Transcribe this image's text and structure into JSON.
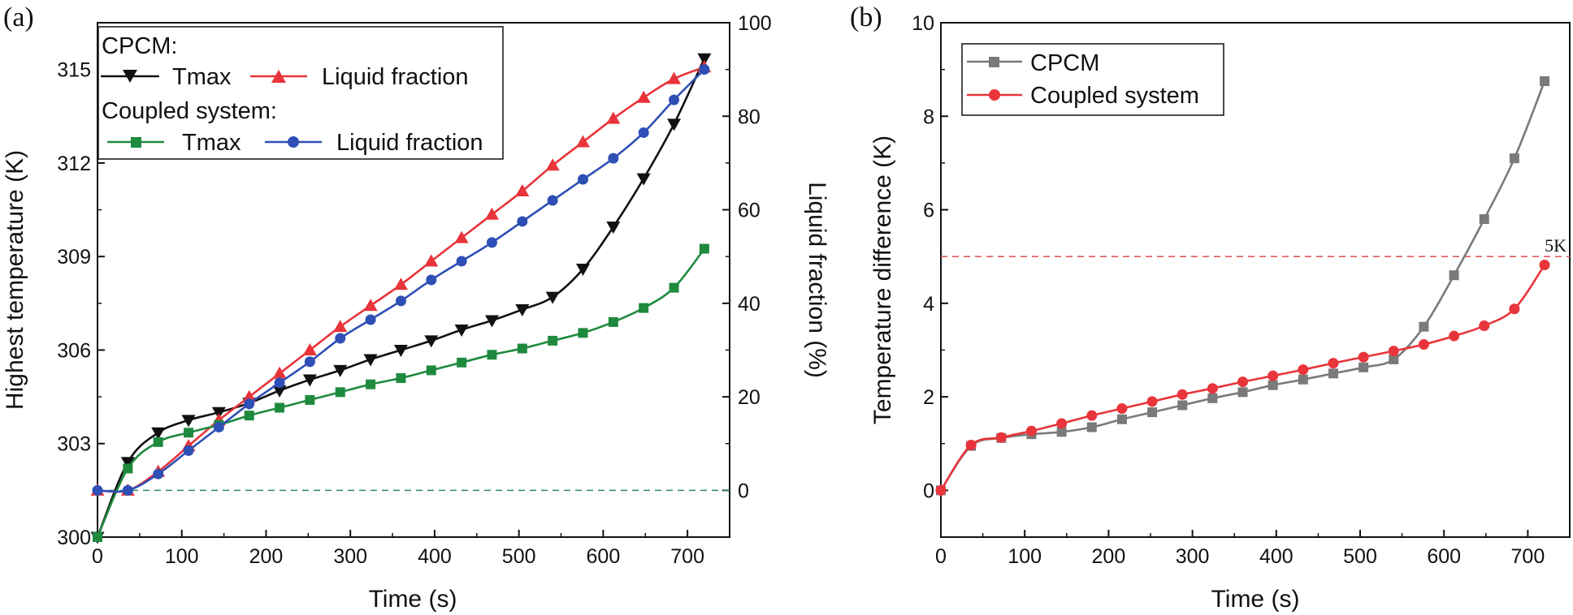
{
  "chart_data": [
    {
      "panel_label": "(a)",
      "type": "line",
      "xlabel": "Time (s)",
      "ylabel": "Highest temperature (K)",
      "ylabel_right": "Liquid fraction (%)",
      "xlim": [
        0,
        750
      ],
      "ylim": [
        300,
        316.5
      ],
      "ylim_right": [
        -10,
        100
      ],
      "xticks": [
        "0",
        "100",
        "200",
        "300",
        "400",
        "500",
        "600",
        "700"
      ],
      "yticks": [
        "300",
        "303",
        "306",
        "309",
        "312",
        "315"
      ],
      "yticks_right": [
        "0",
        "20",
        "40",
        "60",
        "80",
        "100"
      ],
      "legend": {
        "position": "top-left",
        "groups": [
          {
            "title": "CPCM:",
            "entries": [
              "Tmax",
              "Liquid fraction"
            ]
          },
          {
            "title": "Coupled system:",
            "entries": [
              "Tmax",
              "Liquid fraction"
            ]
          }
        ]
      },
      "reference_lines": [
        {
          "axis": "right",
          "value": 0,
          "color": "#2e8b57",
          "style": "dashed"
        }
      ],
      "series": [
        {
          "name": "Tmax",
          "group": "CPCM",
          "axis": "left",
          "color": "#111111",
          "marker": "triangle-down",
          "x": [
            0,
            36,
            72,
            108,
            144,
            180,
            216,
            252,
            288,
            324,
            360,
            396,
            432,
            468,
            504,
            540,
            576,
            612,
            648,
            684,
            720
          ],
          "y": [
            300.0,
            302.4,
            303.35,
            303.75,
            304.0,
            304.3,
            304.7,
            305.05,
            305.35,
            305.7,
            306.0,
            306.3,
            306.65,
            306.95,
            307.3,
            307.7,
            308.6,
            309.95,
            311.5,
            313.25,
            315.35
          ]
        },
        {
          "name": "Liquid fraction",
          "group": "CPCM",
          "axis": "right",
          "color": "#e8343a",
          "marker": "triangle-up",
          "x": [
            0,
            36,
            72,
            108,
            144,
            180,
            216,
            252,
            288,
            324,
            360,
            396,
            432,
            468,
            504,
            540,
            576,
            612,
            648,
            684,
            720
          ],
          "y": [
            0,
            0,
            4,
            9.5,
            15,
            20,
            25,
            30,
            35,
            39.5,
            44,
            49,
            54,
            59,
            64,
            69.5,
            74.5,
            79.5,
            84,
            88,
            90.5
          ]
        },
        {
          "name": "Tmax",
          "group": "Coupled system",
          "axis": "left",
          "color": "#1e8a3e",
          "marker": "square",
          "x": [
            0,
            36,
            72,
            108,
            144,
            180,
            216,
            252,
            288,
            324,
            360,
            396,
            432,
            468,
            504,
            540,
            576,
            612,
            648,
            684,
            720
          ],
          "y": [
            300.0,
            302.2,
            303.05,
            303.35,
            303.6,
            303.9,
            304.15,
            304.4,
            304.65,
            304.9,
            305.1,
            305.35,
            305.6,
            305.85,
            306.05,
            306.3,
            306.55,
            306.9,
            307.35,
            308.0,
            309.25
          ]
        },
        {
          "name": "Liquid fraction",
          "group": "Coupled system",
          "axis": "right",
          "color": "#2e4fb5",
          "marker": "circle",
          "x": [
            0,
            36,
            72,
            108,
            144,
            180,
            216,
            252,
            288,
            324,
            360,
            396,
            432,
            468,
            504,
            540,
            576,
            612,
            648,
            684,
            720
          ],
          "y": [
            0,
            0,
            3.5,
            8.5,
            13.5,
            18.5,
            23,
            27.5,
            32.5,
            36.5,
            40.5,
            45,
            49,
            53,
            57.5,
            62,
            66.5,
            71,
            76.5,
            83.5,
            90
          ]
        }
      ]
    },
    {
      "panel_label": "(b)",
      "type": "line",
      "xlabel": "Time (s)",
      "ylabel": "Temperature difference (K)",
      "xlim": [
        0,
        750
      ],
      "ylim": [
        -1,
        10
      ],
      "xticks": [
        "0",
        "100",
        "200",
        "300",
        "400",
        "500",
        "600",
        "700"
      ],
      "yticks": [
        "0",
        "2",
        "4",
        "6",
        "8",
        "10"
      ],
      "legend": {
        "position": "top-left",
        "entries": [
          "CPCM",
          "Coupled system"
        ]
      },
      "reference_lines": [
        {
          "axis": "left",
          "value": 5,
          "label": "5K",
          "color": "#e05a5a",
          "style": "dashed"
        }
      ],
      "series": [
        {
          "name": "CPCM",
          "color": "#7a7a7a",
          "marker": "square",
          "x": [
            0,
            36,
            72,
            108,
            144,
            180,
            216,
            252,
            288,
            324,
            360,
            396,
            432,
            468,
            504,
            540,
            576,
            612,
            648,
            684,
            720
          ],
          "y": [
            0,
            0.95,
            1.12,
            1.2,
            1.25,
            1.35,
            1.52,
            1.67,
            1.82,
            1.97,
            2.1,
            2.25,
            2.37,
            2.5,
            2.63,
            2.8,
            3.5,
            4.6,
            5.8,
            7.1,
            8.75
          ]
        },
        {
          "name": "Coupled system",
          "color": "#e8343a",
          "marker": "circle",
          "x": [
            0,
            36,
            72,
            108,
            144,
            180,
            216,
            252,
            288,
            324,
            360,
            396,
            432,
            468,
            504,
            540,
            576,
            612,
            648,
            684,
            720
          ],
          "y": [
            0,
            0.97,
            1.13,
            1.27,
            1.43,
            1.6,
            1.75,
            1.9,
            2.05,
            2.18,
            2.32,
            2.45,
            2.58,
            2.72,
            2.85,
            2.98,
            3.12,
            3.3,
            3.52,
            3.88,
            4.82
          ]
        }
      ]
    }
  ]
}
